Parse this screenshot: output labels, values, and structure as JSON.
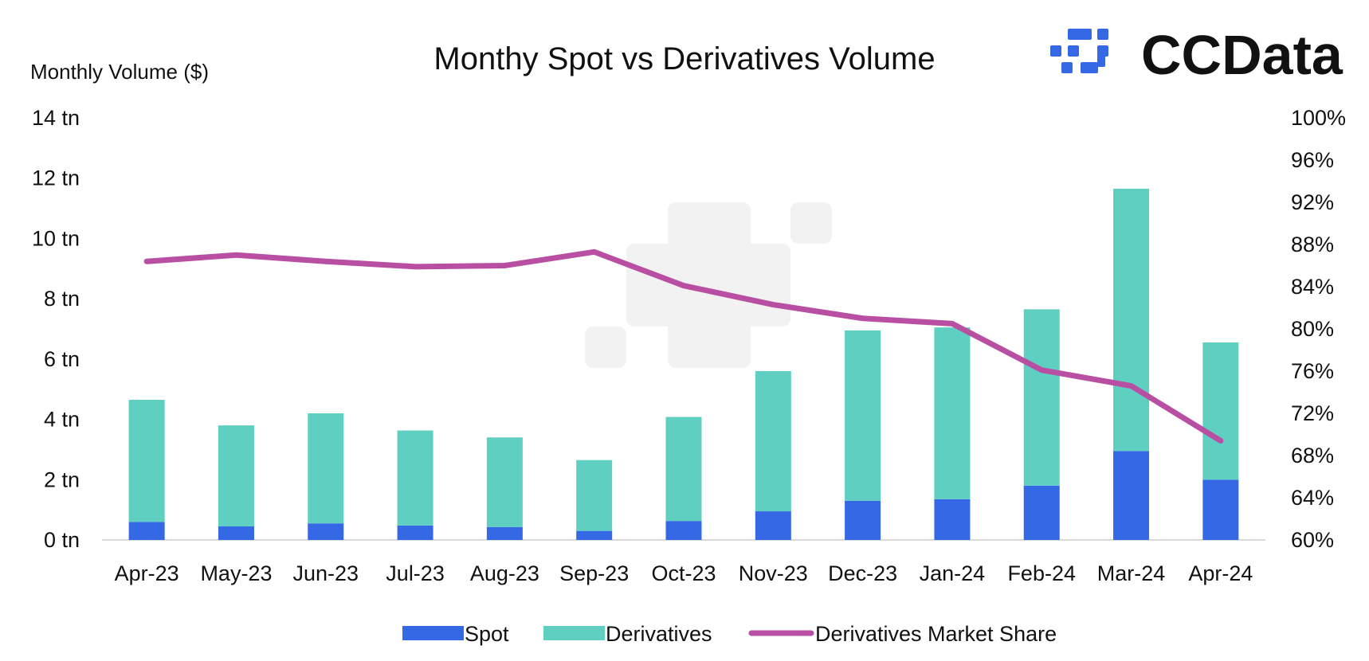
{
  "chart_data": {
    "type": "bar",
    "title": "Monthy Spot vs Derivatives Volume",
    "ylabel": "Monthly Volume ($)",
    "ylim": [
      0,
      14
    ],
    "y2lim": [
      60,
      100
    ],
    "y_ticks": [
      "0 tn",
      "2 tn",
      "4 tn",
      "6 tn",
      "8 tn",
      "10 tn",
      "12 tn",
      "14 tn"
    ],
    "y2_ticks": [
      "60%",
      "64%",
      "68%",
      "72%",
      "76%",
      "80%",
      "84%",
      "88%",
      "92%",
      "96%",
      "100%"
    ],
    "categories": [
      "Apr-23",
      "May-23",
      "Jun-23",
      "Jul-23",
      "Aug-23",
      "Sep-23",
      "Oct-23",
      "Nov-23",
      "Dec-23",
      "Jan-24",
      "Feb-24",
      "Mar-24",
      "Apr-24"
    ],
    "series": [
      {
        "name": "Spot",
        "type": "bar",
        "stack": "volume",
        "color": "#3568e4",
        "values": [
          0.6,
          0.45,
          0.55,
          0.48,
          0.43,
          0.3,
          0.63,
          0.95,
          1.3,
          1.35,
          1.8,
          2.95,
          2.0
        ]
      },
      {
        "name": "Derivatives",
        "type": "bar",
        "stack": "volume",
        "color": "#5fcfc2",
        "values": [
          4.05,
          3.35,
          3.65,
          3.15,
          2.97,
          2.35,
          3.45,
          4.65,
          5.65,
          5.7,
          5.85,
          8.7,
          4.55
        ]
      },
      {
        "name": "Derivatives Market Share",
        "type": "line",
        "axis": "right",
        "color": "#b94fa3",
        "values": [
          86.4,
          87.0,
          86.4,
          85.9,
          86.0,
          87.3,
          84.1,
          82.3,
          81.0,
          80.5,
          76.1,
          74.6,
          69.4
        ]
      }
    ],
    "legend_position": "bottom",
    "grid": false
  },
  "brand": {
    "logo_text": "CCData",
    "logo_color": "#3568e4"
  }
}
